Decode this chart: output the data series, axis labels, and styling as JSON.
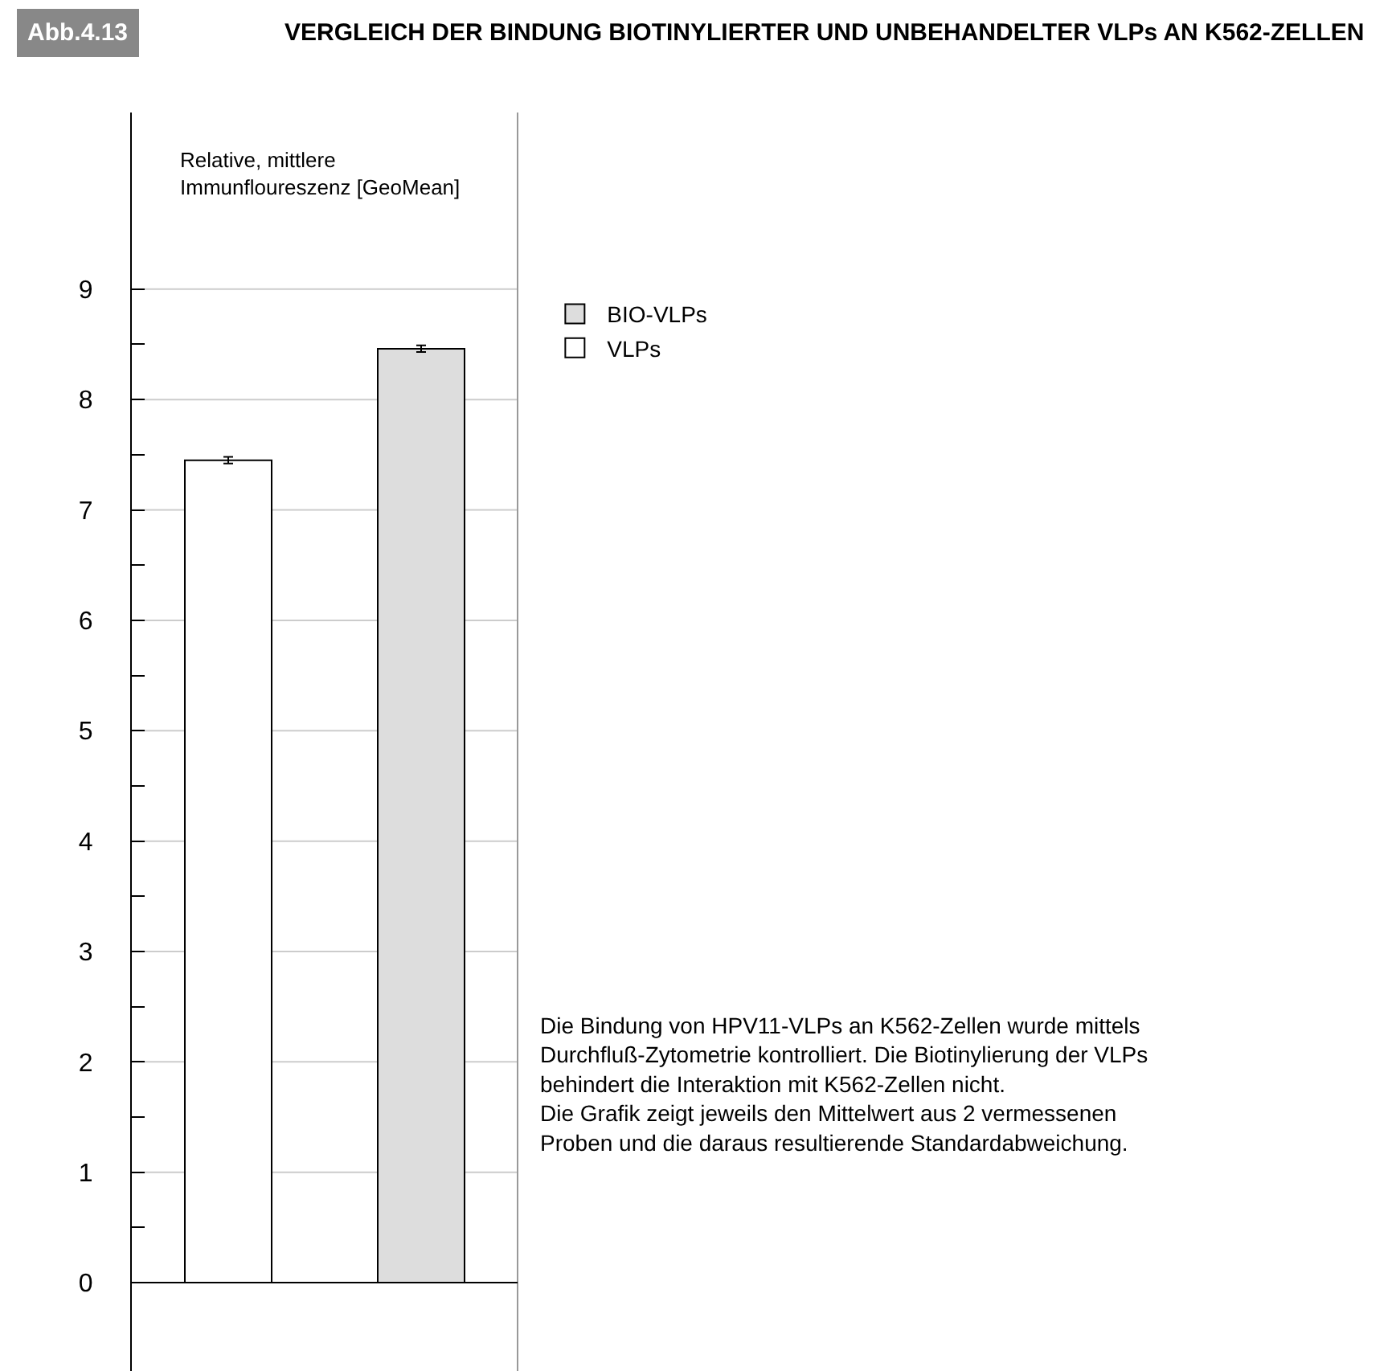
{
  "chart_data": {
    "type": "bar",
    "title": "VERGLEICH DER BINDUNG BIOTINYLIERTER UND UNBEHANDELTER VLPs AN K562-ZELLEN",
    "ylabel": "Relative, mittlere\nImmunfloureszenz [GeoMean]",
    "categories": [
      null,
      null
    ],
    "series": [
      {
        "name": "BIO-VLPs",
        "color": "#dddddd",
        "values": [
          null,
          8.46
        ],
        "errors": [
          null,
          0.03
        ]
      },
      {
        "name": "VLPs",
        "color": "#ffffff",
        "values": [
          7.45,
          null
        ],
        "errors": [
          0.03,
          null
        ]
      }
    ],
    "ylim": [
      -0.8,
      10.6
    ],
    "yticks": [
      0,
      {
        "value": 0.5,
        "label": null
      },
      1,
      {
        "value": 1.5,
        "label": null
      },
      2,
      {
        "value": 2.5,
        "label": null
      },
      3,
      {
        "value": 3.5,
        "label": null
      },
      4,
      {
        "value": 4.5,
        "label": null
      },
      5,
      {
        "value": 5.5,
        "label": null
      },
      6,
      {
        "value": 6.5,
        "label": null
      },
      7,
      {
        "value": 7.5,
        "label": null
      },
      8,
      {
        "value": 8.5,
        "label": null
      },
      9
    ],
    "grid": "y",
    "legend": "right",
    "annotations": [
      "Abb.4.13",
      "Die Bindung von HPV11-VLPs an K562-Zellen wurde mittels\nDurchfluß-Zytometrie kontrolliert. Die Biotinylierung der VLPs\nbehindert die Interaktion mit K562-Zellen nicht.\nDie Grafik zeigt jeweils den Mittelwert aus 2 vermessenen\nProben und die daraus resultierende Standardabweichung."
    ]
  }
}
